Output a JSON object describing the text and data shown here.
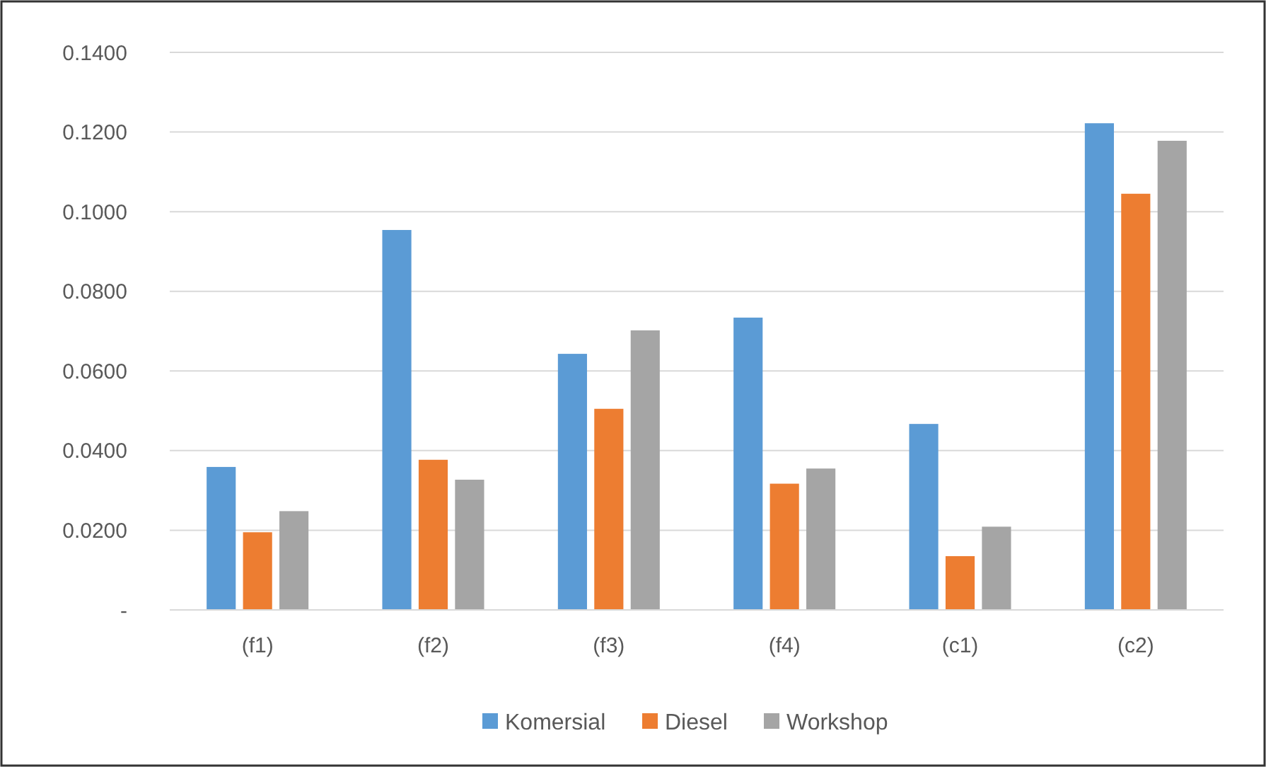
{
  "chart_data": {
    "type": "bar",
    "categories": [
      "(f1)",
      "(f2)",
      "(f3)",
      "(f4)",
      "(c1)",
      "(c2)"
    ],
    "series": [
      {
        "name": "Komersial",
        "color": "#5b9bd5",
        "values": [
          0.0359,
          0.0954,
          0.0643,
          0.0734,
          0.0467,
          0.1222
        ]
      },
      {
        "name": "Diesel",
        "color": "#ed7d31",
        "values": [
          0.0195,
          0.0377,
          0.0505,
          0.0317,
          0.0135,
          0.1045
        ]
      },
      {
        "name": "Workshop",
        "color": "#a5a5a5",
        "values": [
          0.0248,
          0.0327,
          0.0702,
          0.0355,
          0.0209,
          0.1178
        ]
      }
    ],
    "ylim": [
      0,
      0.14
    ],
    "yticks": [
      {
        "value": 0,
        "label": "-"
      },
      {
        "value": 0.02,
        "label": "0.0200"
      },
      {
        "value": 0.04,
        "label": "0.0400"
      },
      {
        "value": 0.06,
        "label": "0.0600"
      },
      {
        "value": 0.08,
        "label": "0.0800"
      },
      {
        "value": 0.1,
        "label": "0.1000"
      },
      {
        "value": 0.12,
        "label": "0.1200"
      },
      {
        "value": 0.14,
        "label": "0.1400"
      }
    ],
    "grid": "y",
    "legend": "bottom"
  }
}
